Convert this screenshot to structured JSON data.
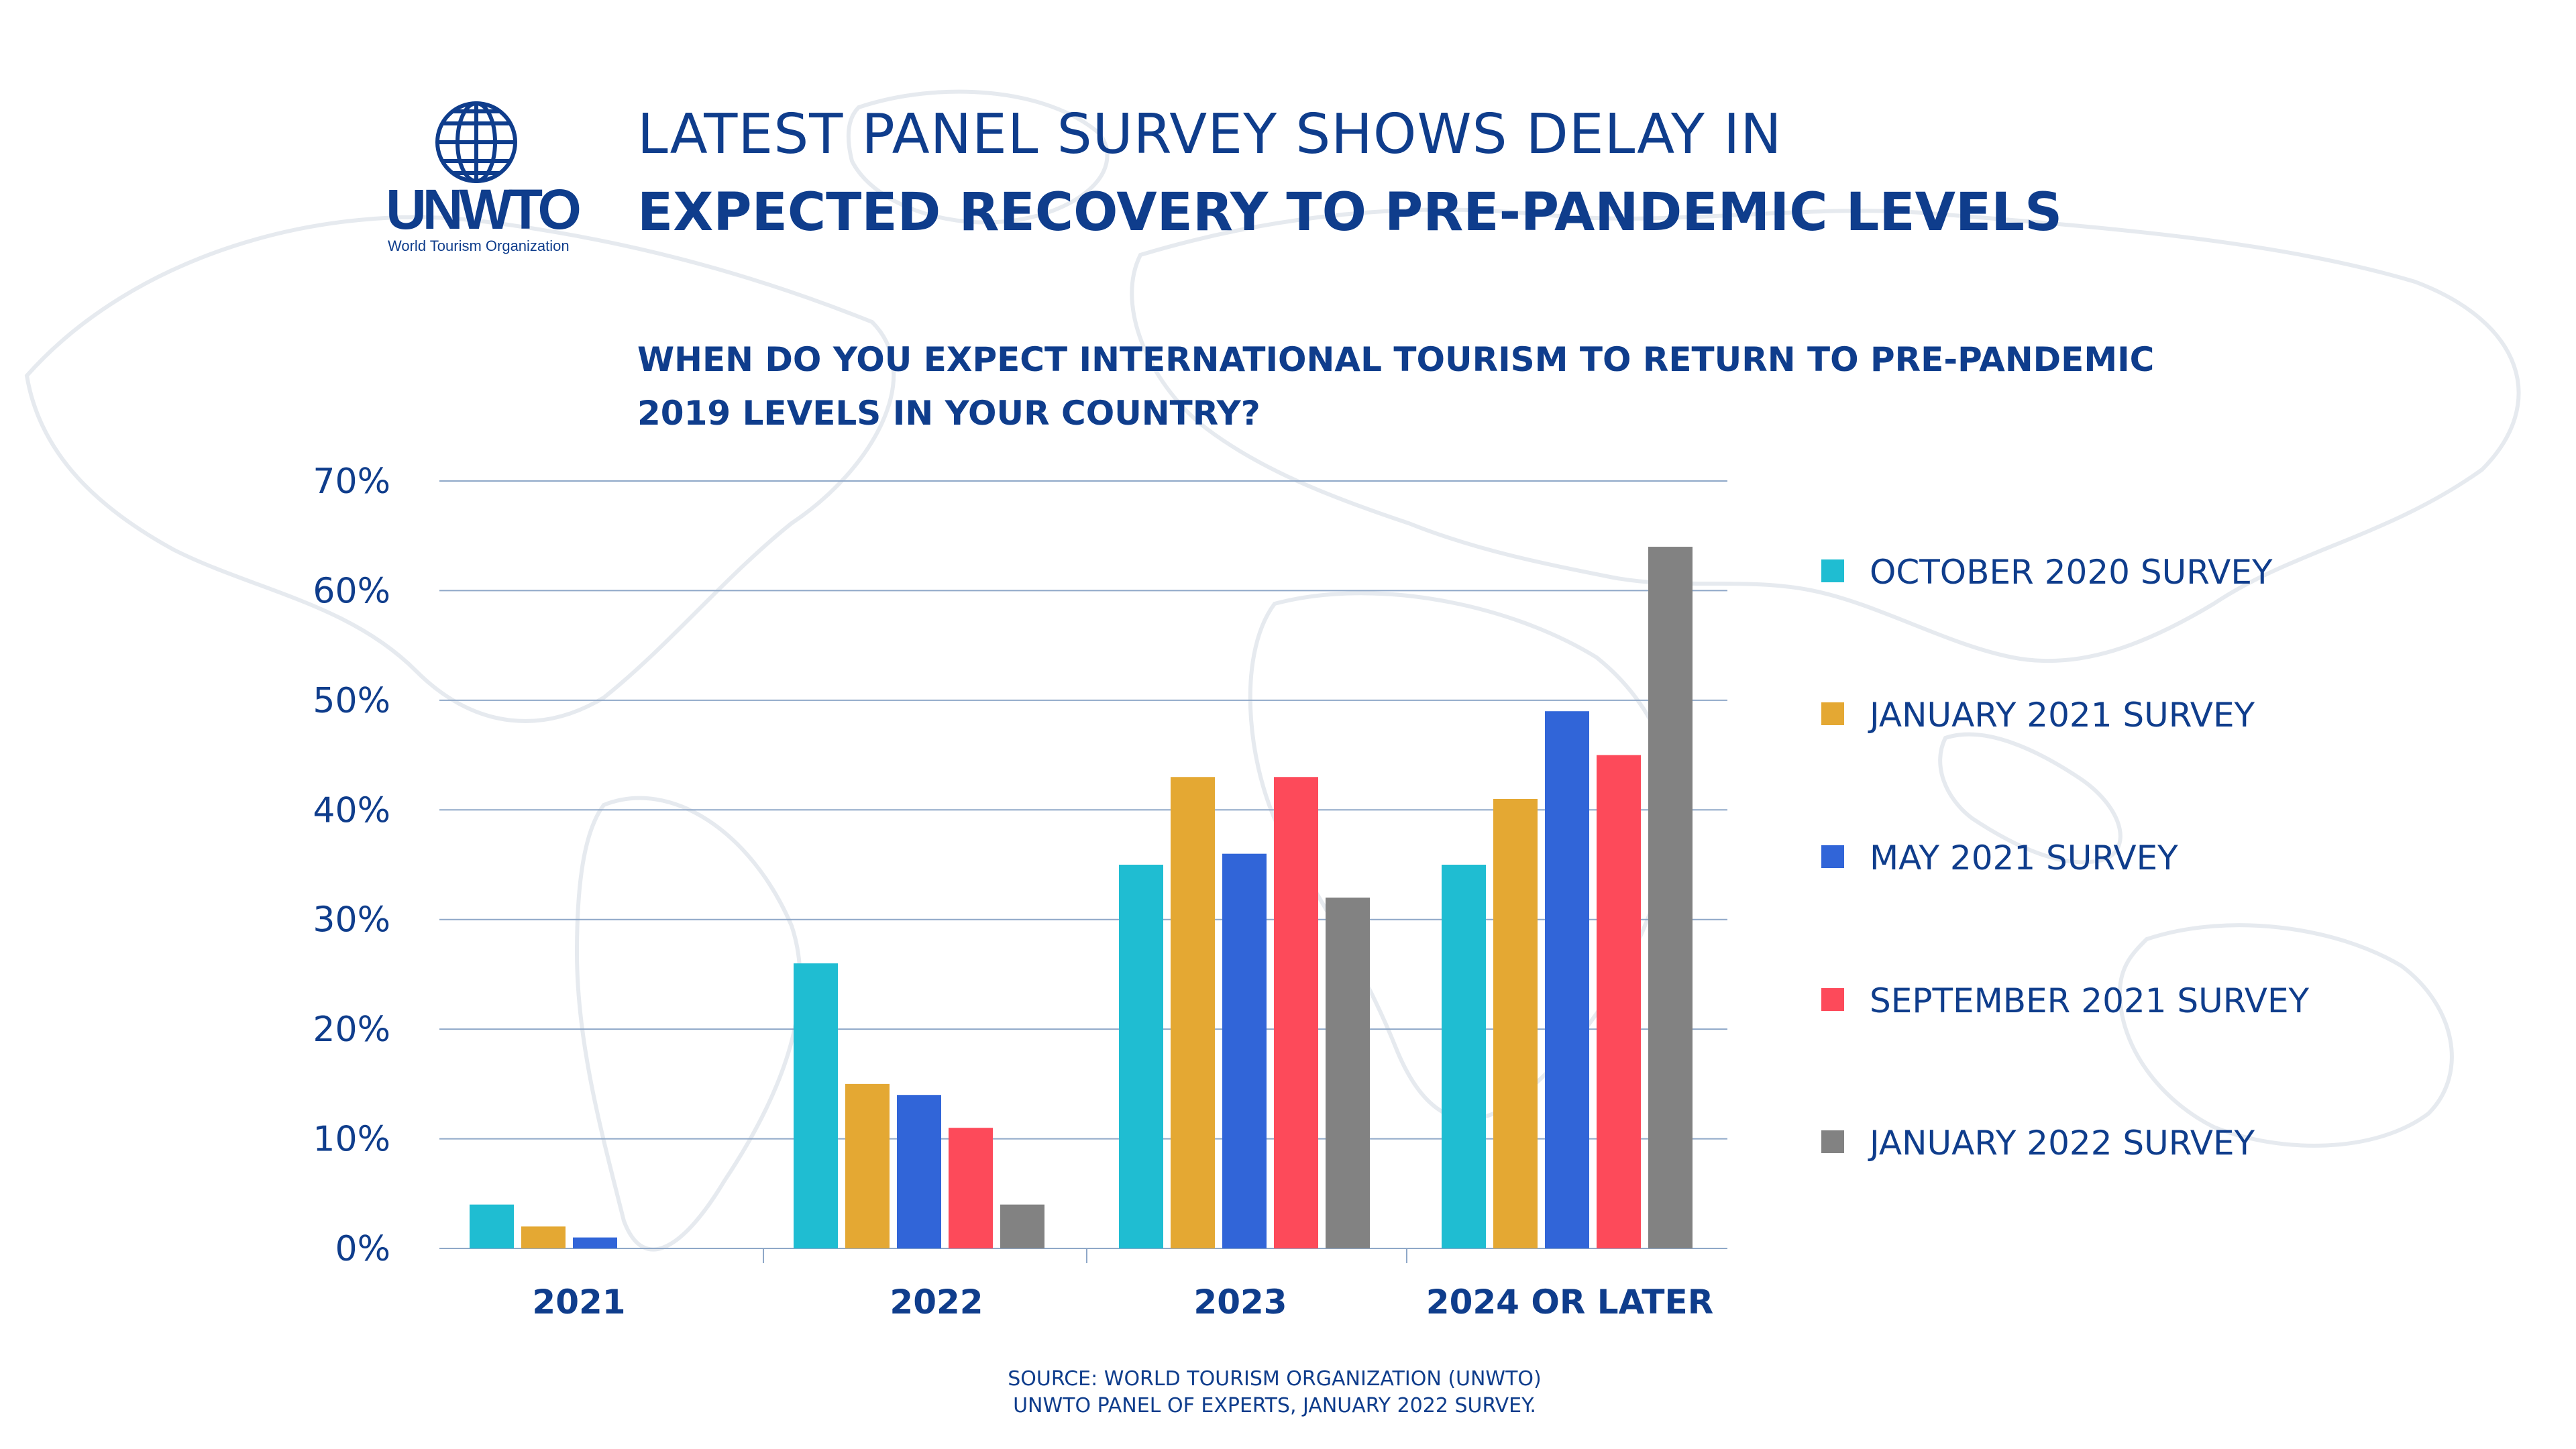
{
  "colors": {
    "primary": "#0f3d8c",
    "grid": "#8fa8c8",
    "map": "#e9edf2"
  },
  "logo": {
    "name": "UNWTO",
    "subtitle": "World Tourism Organization"
  },
  "header": {
    "title_line1": "LATEST PANEL SURVEY SHOWS DELAY IN",
    "title_line2": "EXPECTED RECOVERY TO PRE-PANDEMIC LEVELS"
  },
  "question": {
    "line1": "WHEN DO YOU EXPECT INTERNATIONAL TOURISM TO RETURN TO PRE-PANDEMIC",
    "line2": "2019 LEVELS IN YOUR COUNTRY?"
  },
  "chart_data": {
    "type": "bar",
    "title": "WHEN DO YOU EXPECT INTERNATIONAL TOURISM TO RETURN TO PRE-PANDEMIC 2019 LEVELS IN YOUR COUNTRY?",
    "xlabel": "",
    "ylabel": "",
    "ylim": [
      0,
      70
    ],
    "yticks": [
      0,
      10,
      20,
      30,
      40,
      50,
      60,
      70
    ],
    "ytick_labels": [
      "0%",
      "10%",
      "20%",
      "30%",
      "40%",
      "50%",
      "60%",
      "70%"
    ],
    "grid": true,
    "legend_position": "right",
    "categories": [
      "2021",
      "2022",
      "2023",
      "2024 OR LATER"
    ],
    "series": [
      {
        "name": "OCTOBER 2020 SURVEY",
        "color": "#1fbdd2",
        "values": [
          4,
          26,
          35,
          35
        ]
      },
      {
        "name": "JANUARY 2021 SURVEY",
        "color": "#e4a833",
        "values": [
          2,
          15,
          43,
          41
        ]
      },
      {
        "name": "MAY 2021 SURVEY",
        "color": "#3165d8",
        "values": [
          1,
          14,
          36,
          49
        ]
      },
      {
        "name": "SEPTEMBER 2021 SURVEY",
        "color": "#fd4a5a",
        "values": [
          0,
          11,
          43,
          45
        ]
      },
      {
        "name": "JANUARY 2022 SURVEY",
        "color": "#828282",
        "values": [
          0,
          4,
          32,
          64
        ]
      }
    ]
  },
  "source": {
    "line1": "SOURCE: WORLD TOURISM ORGANIZATION (UNWTO)",
    "line2": "UNWTO PANEL OF EXPERTS, JANUARY 2022 SURVEY."
  }
}
